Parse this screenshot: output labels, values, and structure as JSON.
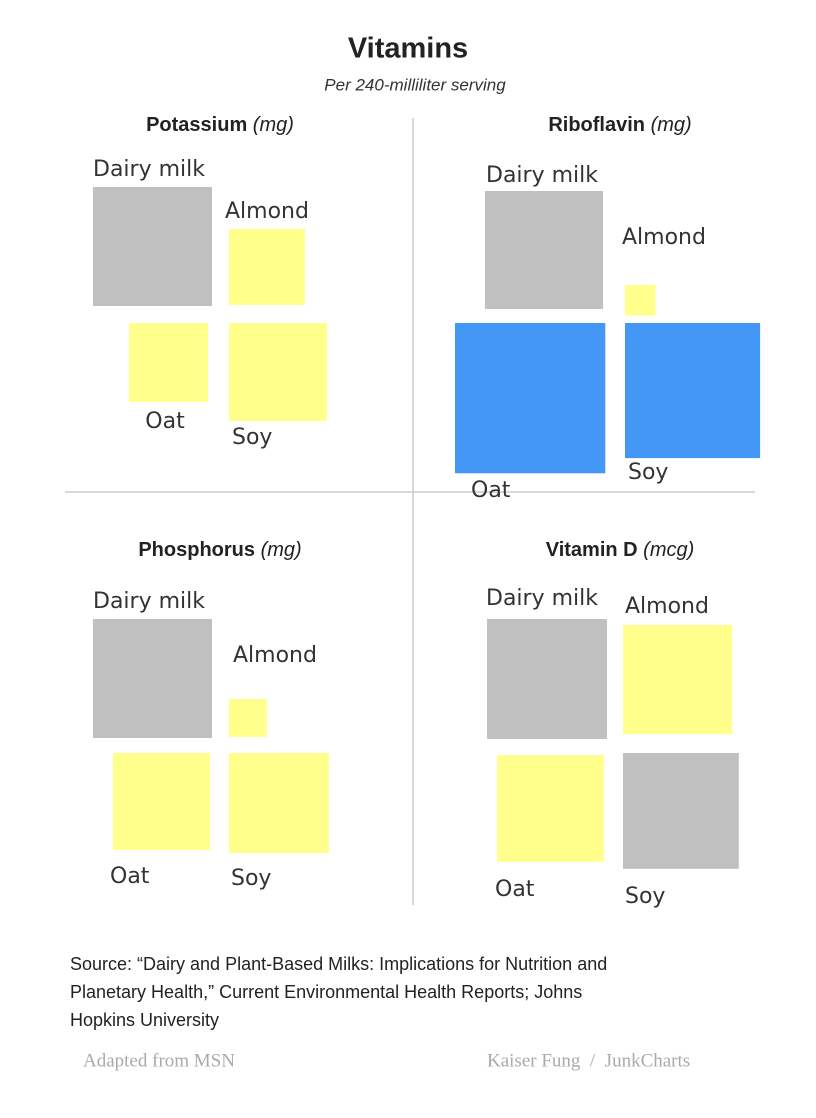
{
  "title": "Vitamins",
  "subtitle": "Per 240-milliliter serving",
  "chart_data": [
    {
      "type": "square",
      "title": "Potassium",
      "unit": "(mg)",
      "categories": [
        "Dairy milk",
        "Almond",
        "Oat",
        "Soy"
      ],
      "values": [
        366,
        149,
        161,
        248
      ],
      "colors": [
        "#c0c0c0",
        "#ffff8c",
        "#ffff8c",
        "#ffff8c"
      ]
    },
    {
      "type": "square",
      "title": "Riboflavin",
      "unit": "(mg)",
      "categories": [
        "Dairy milk",
        "Almond",
        "Oat",
        "Soy"
      ],
      "values": [
        0.45,
        0.03,
        0.73,
        0.59
      ],
      "colors": [
        "#c0c0c0",
        "#ffff8c",
        "#4497f5",
        "#4497f5"
      ]
    },
    {
      "type": "square",
      "title": "Phosphorus",
      "unit": "(mg)",
      "categories": [
        "Dairy milk",
        "Almond",
        "Oat",
        "Soy"
      ],
      "values": [
        247,
        25,
        164,
        174
      ],
      "colors": [
        "#c0c0c0",
        "#ffff8c",
        "#ffff8c",
        "#ffff8c"
      ]
    },
    {
      "type": "square",
      "title": "Vitamin D",
      "unit": "(mcg)",
      "categories": [
        "Dairy milk",
        "Almond",
        "Oat",
        "Soy"
      ],
      "values": [
        2.9,
        2.4,
        2.3,
        2.7
      ],
      "colors": [
        "#c0c0c0",
        "#ffff8c",
        "#ffff8c",
        "#c0c0c0"
      ]
    }
  ],
  "source": [
    "Source: “Dairy and Plant-Based Milks: Implications for Nutrition and",
    "Planetary Health,” Current Environmental Health Reports; Johns",
    "Hopkins University"
  ],
  "credits": [
    "Adapted from MSN",
    "Kaiser Fung  /  JunkCharts"
  ]
}
